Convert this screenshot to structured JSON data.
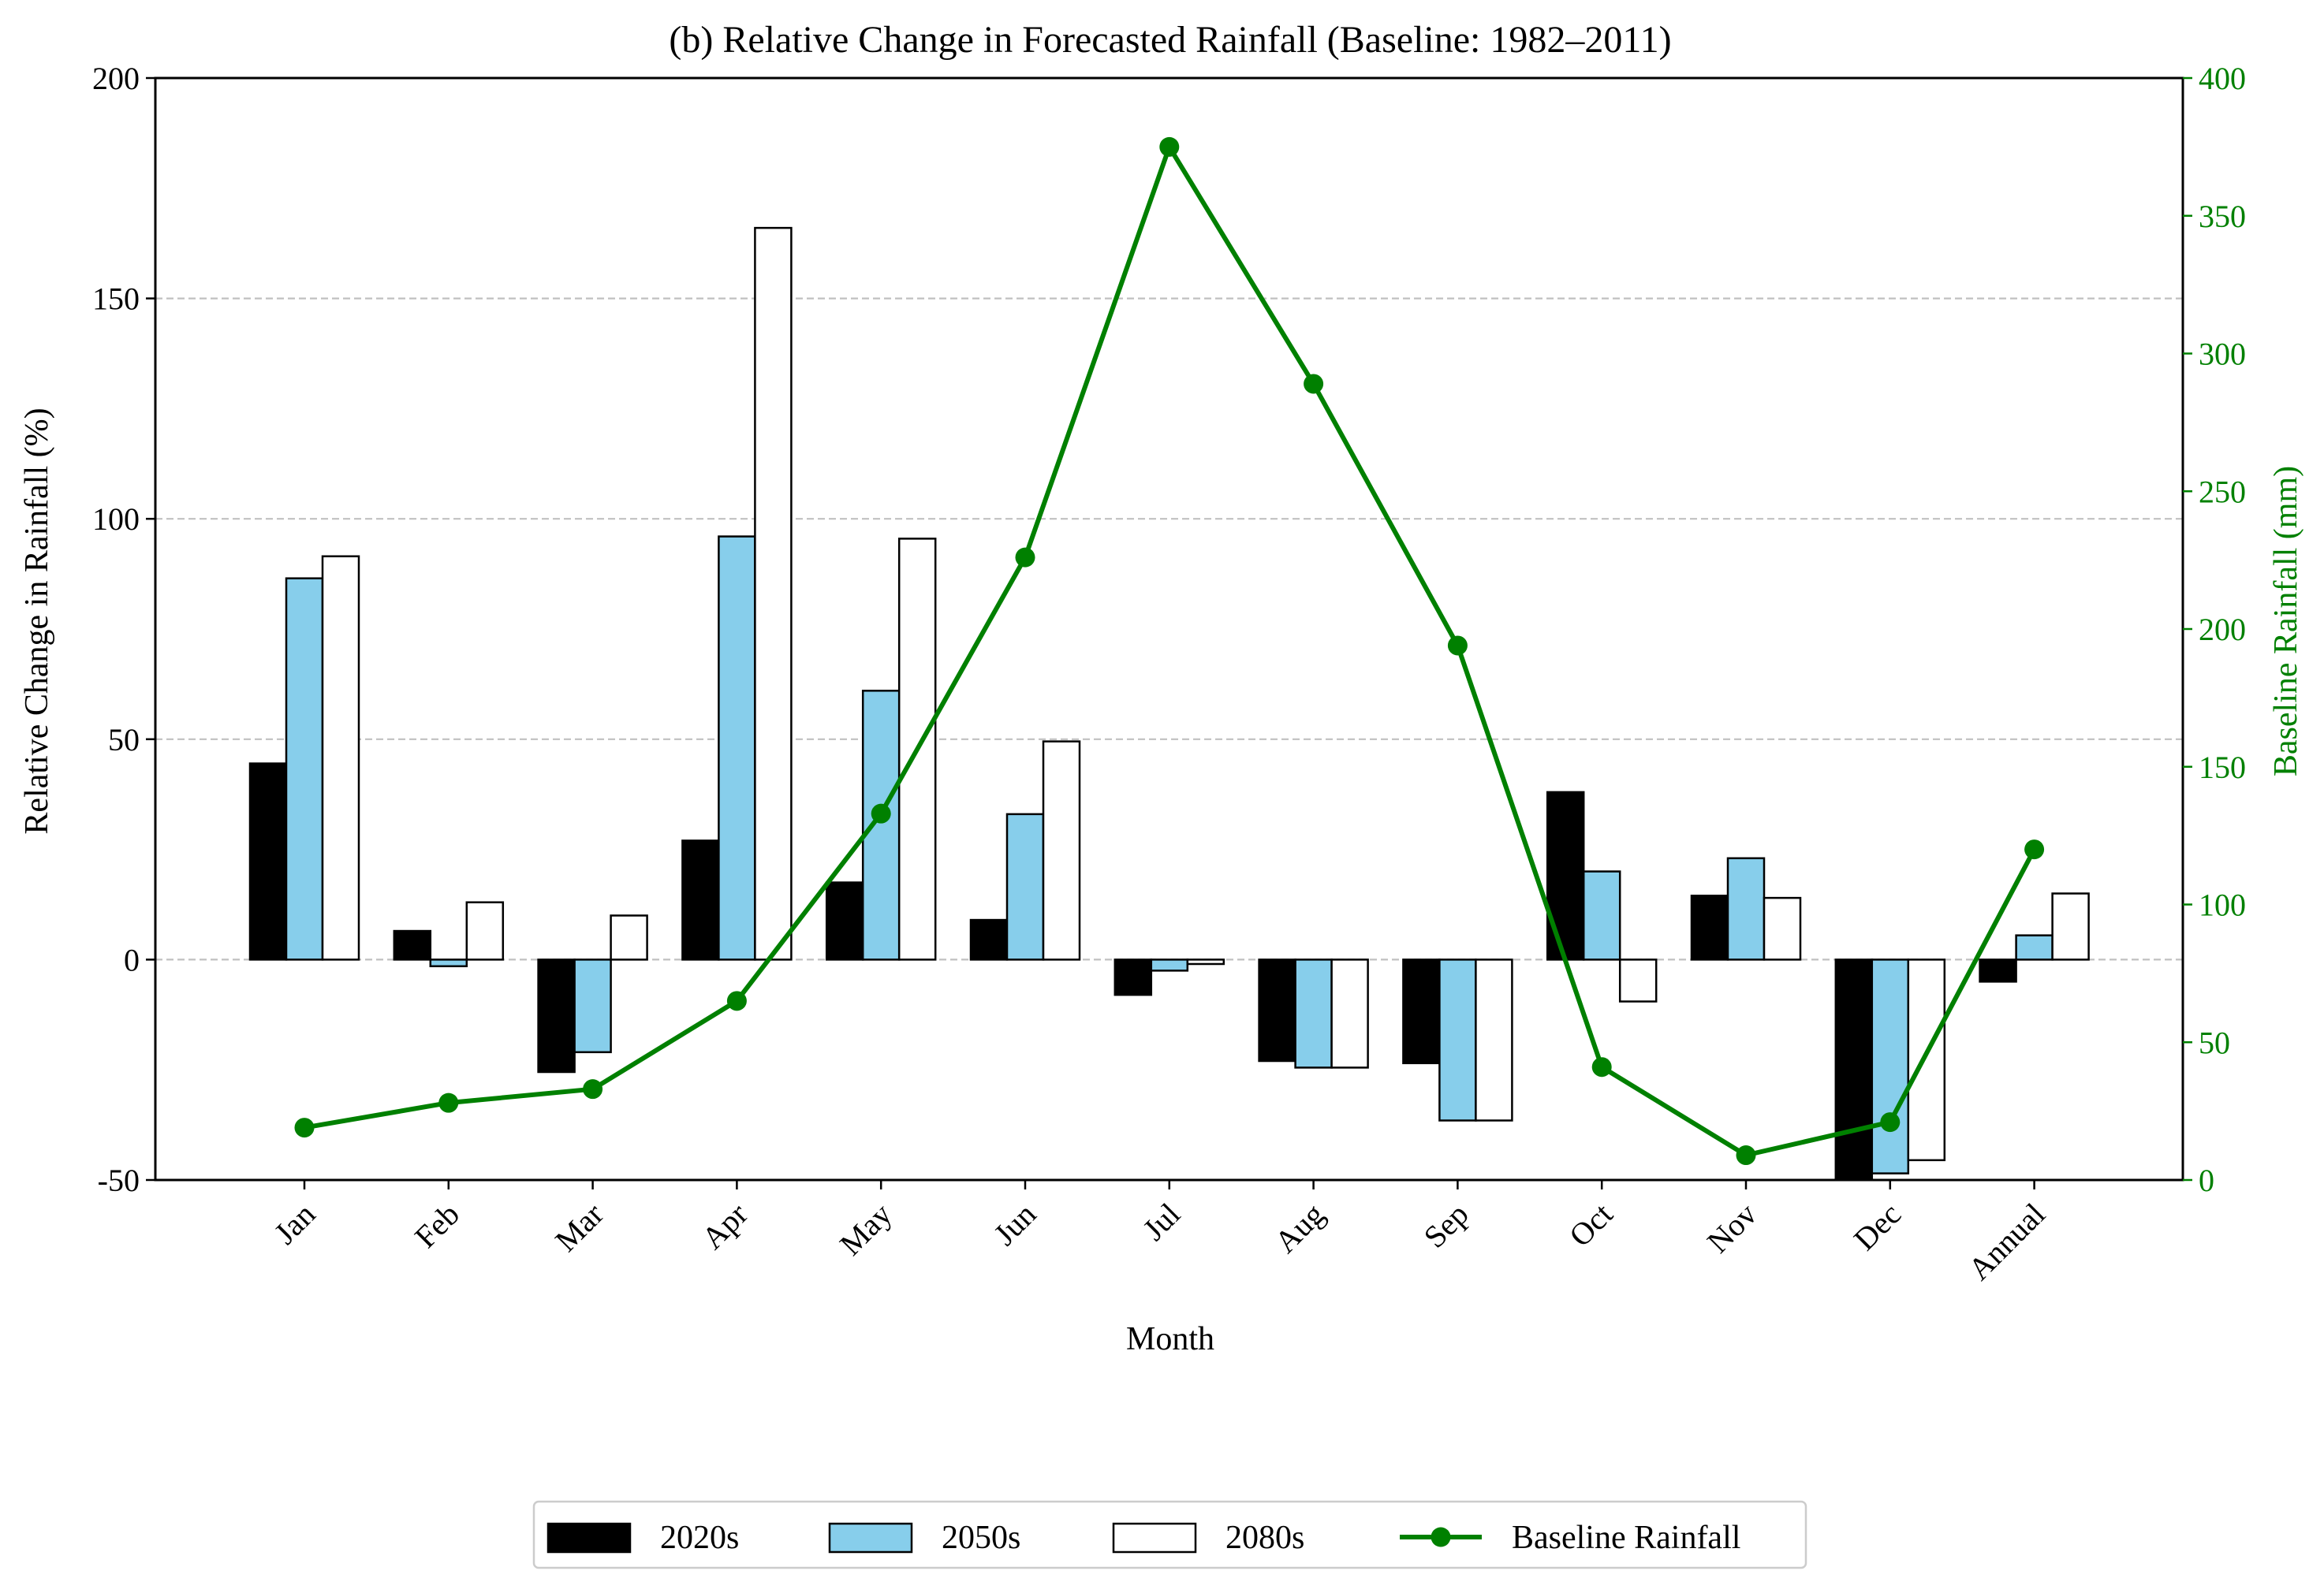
{
  "chart_data": {
    "type": "bar",
    "title": "(b) Relative Change in Forecasted Rainfall (Baseline: 1982–2011)",
    "xlabel": "Month",
    "ylabel": "Relative Change in Rainfall (%)",
    "y2label": "Baseline Rainfall (mm)",
    "categories": [
      "Jan",
      "Feb",
      "Mar",
      "Apr",
      "May",
      "Jun",
      "Jul",
      "Aug",
      "Sep",
      "Oct",
      "Nov",
      "Dec",
      "Annual"
    ],
    "ylim": [
      -50,
      200
    ],
    "yticks": [
      -50,
      0,
      50,
      100,
      150,
      200
    ],
    "y2lim": [
      0,
      400
    ],
    "y2ticks": [
      0,
      50,
      100,
      150,
      200,
      250,
      300,
      350,
      400
    ],
    "grid": "horizontal dashed",
    "legend_position": "bottom-center",
    "series": [
      {
        "name": "2020s",
        "color": "#000000",
        "values": [
          44.5,
          6.5,
          -25.5,
          27,
          17.5,
          9,
          -8,
          -23,
          -23.5,
          38,
          14.5,
          -50,
          -5
        ]
      },
      {
        "name": "2050s",
        "color": "#87ceeb",
        "values": [
          86.5,
          -1.5,
          -21,
          96,
          61,
          33,
          -2.5,
          -24.5,
          -36.5,
          20,
          23,
          -48.5,
          5.5
        ]
      },
      {
        "name": "2080s",
        "color": "#ffffff",
        "values": [
          91.5,
          13,
          10,
          166,
          95.5,
          49.5,
          -1,
          -24.5,
          -36.5,
          -9.5,
          14,
          -45.5,
          15
        ]
      }
    ],
    "line_series": {
      "name": "Baseline Rainfall",
      "color": "#008000",
      "axis": "right",
      "values": [
        19,
        28,
        33,
        65,
        133,
        226,
        375,
        289,
        194,
        41,
        9,
        21,
        120
      ]
    }
  }
}
